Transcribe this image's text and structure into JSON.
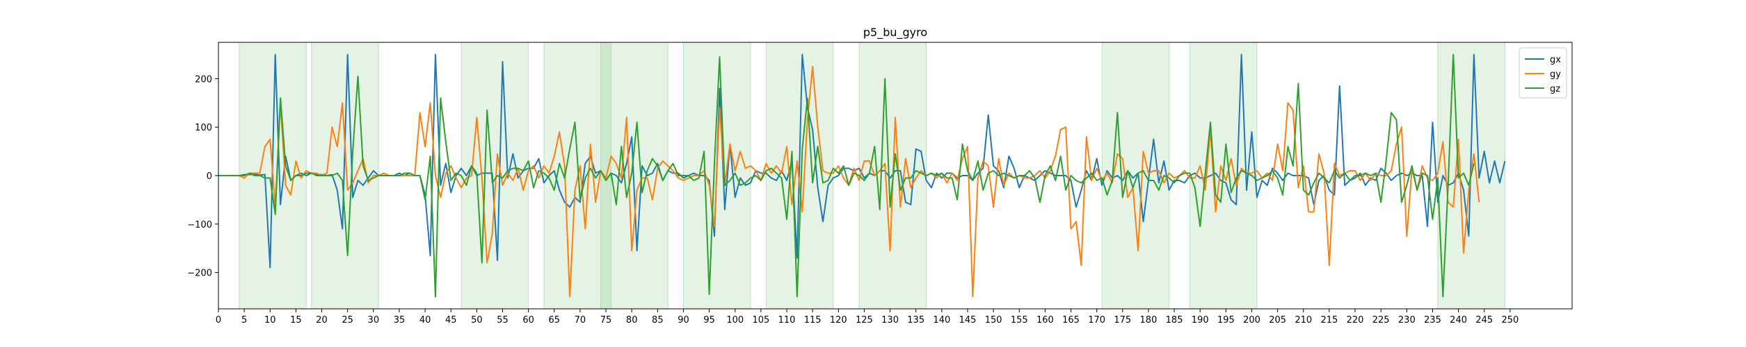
{
  "chart_data": {
    "type": "line",
    "title": "p5_bu_gyro",
    "xlabel": "",
    "ylabel": "",
    "xlim": [
      0,
      262
    ],
    "ylim": [
      -275,
      275
    ],
    "x_ticks": [
      0,
      5,
      10,
      15,
      20,
      25,
      30,
      35,
      40,
      45,
      50,
      55,
      60,
      65,
      70,
      75,
      80,
      85,
      90,
      95,
      100,
      105,
      110,
      115,
      120,
      125,
      130,
      135,
      140,
      145,
      150,
      155,
      160,
      165,
      170,
      175,
      180,
      185,
      190,
      195,
      200,
      205,
      210,
      215,
      220,
      225,
      230,
      235,
      240,
      245,
      250
    ],
    "y_ticks": [
      -200,
      -100,
      0,
      100,
      200
    ],
    "grid": false,
    "legend_position": "top-right",
    "shaded_regions": [
      [
        4,
        17
      ],
      [
        18,
        31
      ],
      [
        47,
        60
      ],
      [
        63,
        76
      ],
      [
        74,
        87
      ],
      [
        90,
        103
      ],
      [
        106,
        119
      ],
      [
        124,
        137
      ],
      [
        171,
        184
      ],
      [
        188,
        201
      ],
      [
        236,
        249
      ]
    ],
    "shade_color": "#2ca02c",
    "series": [
      {
        "name": "gx",
        "color": "#1f77b4",
        "values": [
          0,
          0,
          0,
          0,
          0,
          2,
          2,
          3,
          1,
          2,
          -190,
          250,
          -60,
          40,
          -10,
          0,
          5,
          0,
          5,
          2,
          2,
          0,
          2,
          -30,
          -110,
          250,
          -45,
          -10,
          -20,
          -5,
          10,
          0,
          5,
          0,
          0,
          5,
          0,
          5,
          0,
          0,
          -40,
          -165,
          250,
          -20,
          25,
          -35,
          0,
          15,
          0,
          20,
          0,
          5,
          5,
          5,
          -175,
          235,
          -5,
          45,
          -5,
          10,
          15,
          15,
          35,
          -15,
          0,
          10,
          -30,
          -55,
          -65,
          -45,
          -55,
          25,
          40,
          5,
          10,
          -10,
          5,
          0,
          -15,
          25,
          80,
          -155,
          20,
          0,
          5,
          25,
          -10,
          10,
          5,
          5,
          -5,
          0,
          5,
          0,
          0,
          -10,
          -125,
          180,
          -70,
          65,
          -45,
          -5,
          -20,
          -15,
          10,
          5,
          5,
          -5,
          -10,
          10,
          -10,
          30,
          -170,
          250,
          140,
          95,
          -25,
          -95,
          -20,
          -5,
          0,
          15,
          15,
          10,
          15,
          -5,
          5,
          0,
          10,
          10,
          -5,
          10,
          10,
          -55,
          -60,
          55,
          50,
          -10,
          -25,
          5,
          -5,
          5,
          5,
          -5,
          0,
          0,
          -10,
          5,
          15,
          125,
          20,
          10,
          -25,
          40,
          15,
          -25,
          0,
          -5,
          -10,
          0,
          10,
          5,
          0,
          0,
          0,
          -10,
          -65,
          -30,
          10,
          -10,
          35,
          -20,
          10,
          -5,
          0,
          -10,
          10,
          -5,
          5,
          -95,
          -10,
          75,
          -15,
          30,
          -30,
          -10,
          -10,
          -15,
          0,
          5,
          -5,
          -5,
          0,
          5,
          -10,
          -15,
          -50,
          -60,
          250,
          -30,
          90,
          -45,
          -10,
          -20,
          15,
          5,
          -10,
          5,
          0,
          0,
          0,
          -5,
          -60,
          -10,
          0,
          -30,
          -40,
          185,
          -20,
          -10,
          -5,
          5,
          -20,
          -5,
          -10,
          15,
          5,
          -10,
          0,
          5,
          0,
          5,
          0,
          0,
          -105,
          110,
          -55,
          0,
          -20,
          -15,
          5,
          -30,
          -125,
          250,
          -5,
          50,
          -15,
          30,
          -15,
          30
        ]
      },
      {
        "name": "gy",
        "color": "#ff7f0e",
        "values": [
          0,
          0,
          0,
          0,
          0,
          -5,
          5,
          5,
          5,
          60,
          75,
          -65,
          150,
          -20,
          -40,
          30,
          -5,
          10,
          5,
          5,
          0,
          5,
          100,
          60,
          150,
          -30,
          -15,
          10,
          35,
          -15,
          0,
          0,
          5,
          0,
          0,
          0,
          0,
          0,
          0,
          130,
          60,
          150,
          0,
          -45,
          5,
          20,
          -5,
          -25,
          -5,
          0,
          120,
          -5,
          -180,
          -120,
          45,
          -20,
          5,
          -10,
          15,
          -30,
          10,
          20,
          -5,
          20,
          5,
          40,
          90,
          20,
          -250,
          -30,
          20,
          -110,
          65,
          -55,
          10,
          -5,
          40,
          25,
          -5,
          120,
          -155,
          -30,
          -5,
          -5,
          -50,
          15,
          30,
          20,
          10,
          -5,
          -10,
          -5,
          0,
          0,
          10,
          -20,
          -105,
          140,
          -20,
          65,
          10,
          50,
          15,
          20,
          10,
          -10,
          25,
          5,
          20,
          5,
          60,
          -60,
          30,
          -75,
          115,
          225,
          100,
          10,
          5,
          5,
          20,
          -5,
          -20,
          15,
          -10,
          30,
          30,
          0,
          10,
          25,
          -155,
          120,
          -65,
          35,
          -25,
          -5,
          10,
          0,
          5,
          -5,
          5,
          -15,
          5,
          -10,
          35,
          60,
          -250,
          -5,
          30,
          20,
          -65,
          35,
          -20,
          5,
          -5,
          0,
          -5,
          -5,
          0,
          10,
          -5,
          10,
          40,
          95,
          100,
          -110,
          -95,
          -185,
          80,
          -10,
          15,
          -10,
          5,
          -15,
          45,
          35,
          -45,
          -25,
          -155,
          50,
          5,
          10,
          10,
          -15,
          5,
          -5,
          0,
          10,
          -5,
          -5,
          20,
          -30,
          95,
          -75,
          20,
          -10,
          35,
          -20,
          15,
          5,
          5,
          10,
          -5,
          5,
          -10,
          65,
          10,
          150,
          135,
          -25,
          20,
          -75,
          -75,
          45,
          5,
          -185,
          25,
          0,
          5,
          10,
          10,
          -10,
          5,
          -10,
          5,
          0,
          0,
          10,
          65,
          100,
          -125,
          15,
          -30,
          20,
          -5,
          -10,
          5,
          70,
          -55,
          -65,
          75,
          -160,
          -30,
          45,
          -55
        ]
      },
      {
        "name": "gz",
        "color": "#2ca02c",
        "values": [
          0,
          0,
          0,
          0,
          0,
          0,
          5,
          0,
          0,
          -5,
          -5,
          -80,
          160,
          20,
          -10,
          0,
          0,
          5,
          5,
          0,
          0,
          0,
          0,
          5,
          -10,
          -165,
          50,
          205,
          20,
          -10,
          -5,
          0,
          0,
          0,
          0,
          0,
          5,
          5,
          0,
          0,
          -50,
          40,
          -250,
          160,
          70,
          -10,
          5,
          0,
          -20,
          20,
          5,
          -180,
          135,
          -15,
          0,
          -5,
          10,
          15,
          15,
          10,
          30,
          -25,
          10,
          5,
          -5,
          -30,
          25,
          -5,
          55,
          110,
          -50,
          -5,
          15,
          -5,
          10,
          -10,
          5,
          -60,
          60,
          -45,
          5,
          110,
          -35,
          10,
          35,
          20,
          -10,
          10,
          25,
          0,
          0,
          0,
          -10,
          -5,
          50,
          -245,
          25,
          245,
          -20,
          -10,
          5,
          -20,
          -15,
          -5,
          0,
          -10,
          10,
          15,
          5,
          -5,
          -90,
          50,
          -250,
          55,
          160,
          -15,
          60,
          -15,
          -10,
          15,
          5,
          20,
          -20,
          5,
          0,
          -10,
          5,
          60,
          -70,
          200,
          -65,
          45,
          -30,
          -5,
          -5,
          10,
          5,
          0,
          5,
          0,
          5,
          -5,
          -5,
          -50,
          65,
          10,
          -10,
          30,
          -30,
          5,
          10,
          0,
          5,
          0,
          -5,
          0,
          0,
          10,
          -5,
          -55,
          0,
          20,
          -10,
          40,
          -30,
          0,
          -10,
          -15,
          -5,
          5,
          -10,
          -5,
          -40,
          -10,
          130,
          -45,
          10,
          -25,
          5,
          10,
          -10,
          -10,
          -30,
          0,
          -5,
          -15,
          0,
          5,
          5,
          -25,
          -105,
          5,
          110,
          -40,
          -55,
          65,
          -35,
          -5,
          10,
          5,
          0,
          -10,
          -5,
          0,
          10,
          -5,
          -40,
          60,
          20,
          190,
          -30,
          -40,
          -15,
          5,
          -5,
          -15,
          10,
          -5,
          5,
          -10,
          0,
          0,
          5,
          0,
          5,
          -55,
          30,
          130,
          115,
          -55,
          -20,
          20,
          -30,
          5,
          0,
          -90,
          -5,
          -250,
          -20,
          250,
          -5,
          5,
          -20,
          25
        ]
      }
    ]
  }
}
